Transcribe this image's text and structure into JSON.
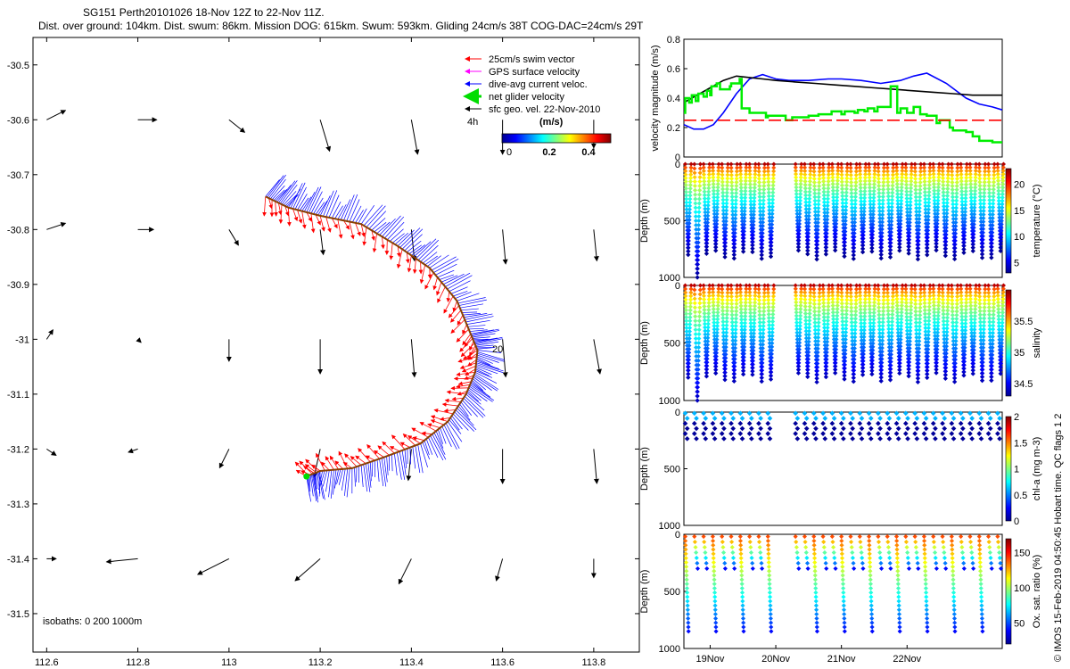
{
  "header": {
    "line1": "SG151 Perth20101026 18-Nov 12Z to 22-Nov 11Z.",
    "line2": "Dist. over ground: 104km. Dist. swum: 86km. Mission DOG: 615km. Swum: 593km. Gliding 24cm/s 38T COG-DAC=24cm/s 29T"
  },
  "footer_note": "© IMOS 15-Feb-2019 04:50:45 Hobart time. QC flags 1  2",
  "chart_data": [
    {
      "id": "map",
      "type": "scatter",
      "title": "SG151 Perth20101026 18-Nov 12Z to 22-Nov 11Z.",
      "xlim": [
        112.57,
        113.9
      ],
      "ylim": [
        -31.57,
        -30.45
      ],
      "xticks": [
        112.6,
        112.8,
        113,
        113.2,
        113.4,
        113.6,
        113.8
      ],
      "xtick_labels": [
        "112.6",
        "112.8",
        "113",
        "113.2",
        "113.4",
        "113.6",
        "113.8"
      ],
      "yticks": [
        -30.5,
        -30.6,
        -30.7,
        -30.8,
        -30.9,
        -31,
        -31.1,
        -31.2,
        -31.3,
        -31.4,
        -31.5
      ],
      "ytick_labels": [
        "-30.5",
        "-30.6",
        "-30.7",
        "-30.8",
        "-30.9",
        "-31",
        "-31.1",
        "-31.2",
        "-31.3",
        "-31.4",
        "-31.5"
      ],
      "legend": {
        "position": "top-right",
        "entries": [
          {
            "label": "25cm/s swim vector",
            "color": "#ff0000"
          },
          {
            "label": "GPS surface velocity",
            "color": "#ff00ff"
          },
          {
            "label": "dive-avg current veloc.",
            "color": "#0000ff"
          },
          {
            "label": "net glider velocity",
            "color": "#00dd00"
          },
          {
            "label": "sfc geo. vel. 22-Nov-2010",
            "color": "#000000"
          }
        ]
      },
      "colorbar": {
        "title": "(m/s)",
        "tick_labels": [
          "0",
          "0.2",
          "0.4"
        ],
        "range": [
          0,
          0.5
        ],
        "side_label": "4h"
      },
      "isobaths_label": "isobaths: 0   200  1000m",
      "track_label": "20",
      "track": [
        {
          "lon": 113.08,
          "lat": -30.74
        },
        {
          "lon": 113.13,
          "lat": -30.76
        },
        {
          "lon": 113.2,
          "lat": -30.775
        },
        {
          "lon": 113.29,
          "lat": -30.79
        },
        {
          "lon": 113.37,
          "lat": -30.83
        },
        {
          "lon": 113.44,
          "lat": -30.87
        },
        {
          "lon": 113.5,
          "lat": -30.93
        },
        {
          "lon": 113.53,
          "lat": -30.99
        },
        {
          "lon": 113.545,
          "lat": -31.02
        },
        {
          "lon": 113.54,
          "lat": -31.06
        },
        {
          "lon": 113.52,
          "lat": -31.1
        },
        {
          "lon": 113.48,
          "lat": -31.15
        },
        {
          "lon": 113.42,
          "lat": -31.19
        },
        {
          "lon": 113.34,
          "lat": -31.215
        },
        {
          "lon": 113.27,
          "lat": -31.235
        },
        {
          "lon": 113.2,
          "lat": -31.24
        },
        {
          "lon": 113.17,
          "lat": -31.25
        }
      ],
      "geo_vectors": [
        {
          "lon": 112.6,
          "lat": -30.6,
          "u": 0.06,
          "v": 0.03
        },
        {
          "lon": 112.8,
          "lat": -30.6,
          "u": 0.06,
          "v": 0.0
        },
        {
          "lon": 113.0,
          "lat": -30.6,
          "u": 0.05,
          "v": -0.04
        },
        {
          "lon": 113.2,
          "lat": -30.6,
          "u": 0.03,
          "v": -0.1
        },
        {
          "lon": 113.4,
          "lat": -30.6,
          "u": 0.02,
          "v": -0.11
        },
        {
          "lon": 113.6,
          "lat": -30.6,
          "u": 0.0,
          "v": -0.11
        },
        {
          "lon": 113.8,
          "lat": -30.6,
          "u": 0.0,
          "v": -0.09
        },
        {
          "lon": 112.6,
          "lat": -30.8,
          "u": 0.06,
          "v": 0.02
        },
        {
          "lon": 112.8,
          "lat": -30.8,
          "u": 0.05,
          "v": 0.0
        },
        {
          "lon": 113.0,
          "lat": -30.8,
          "u": 0.03,
          "v": -0.05
        },
        {
          "lon": 113.2,
          "lat": -30.8,
          "u": 0.01,
          "v": -0.08
        },
        {
          "lon": 113.4,
          "lat": -30.8,
          "u": 0.01,
          "v": -0.1
        },
        {
          "lon": 113.6,
          "lat": -30.8,
          "u": 0.01,
          "v": -0.11
        },
        {
          "lon": 113.8,
          "lat": -30.8,
          "u": 0.01,
          "v": -0.1
        },
        {
          "lon": 112.6,
          "lat": -31.0,
          "u": 0.02,
          "v": 0.03
        },
        {
          "lon": 112.8,
          "lat": -31.0,
          "u": 0.01,
          "v": -0.01
        },
        {
          "lon": 113.0,
          "lat": -31.0,
          "u": 0.0,
          "v": -0.07
        },
        {
          "lon": 113.2,
          "lat": -31.0,
          "u": 0.0,
          "v": -0.11
        },
        {
          "lon": 113.4,
          "lat": -31.0,
          "u": 0.01,
          "v": -0.12
        },
        {
          "lon": 113.6,
          "lat": -31.0,
          "u": 0.01,
          "v": -0.12
        },
        {
          "lon": 113.8,
          "lat": -31.0,
          "u": 0.02,
          "v": -0.11
        },
        {
          "lon": 112.6,
          "lat": -31.2,
          "u": 0.03,
          "v": -0.02
        },
        {
          "lon": 112.8,
          "lat": -31.2,
          "u": -0.03,
          "v": -0.01
        },
        {
          "lon": 113.0,
          "lat": -31.2,
          "u": -0.03,
          "v": -0.06
        },
        {
          "lon": 113.2,
          "lat": -31.2,
          "u": -0.02,
          "v": -0.09
        },
        {
          "lon": 113.4,
          "lat": -31.2,
          "u": -0.01,
          "v": -0.1
        },
        {
          "lon": 113.6,
          "lat": -31.2,
          "u": 0.0,
          "v": -0.11
        },
        {
          "lon": 113.8,
          "lat": -31.2,
          "u": 0.01,
          "v": -0.11
        },
        {
          "lon": 112.6,
          "lat": -31.4,
          "u": 0.03,
          "v": 0.0
        },
        {
          "lon": 112.8,
          "lat": -31.4,
          "u": -0.1,
          "v": -0.01
        },
        {
          "lon": 113.0,
          "lat": -31.4,
          "u": -0.1,
          "v": -0.05
        },
        {
          "lon": 113.2,
          "lat": -31.4,
          "u": -0.08,
          "v": -0.07
        },
        {
          "lon": 113.4,
          "lat": -31.4,
          "u": -0.04,
          "v": -0.08
        },
        {
          "lon": 113.6,
          "lat": -31.4,
          "u": -0.02,
          "v": -0.07
        },
        {
          "lon": 113.8,
          "lat": -31.4,
          "u": 0.0,
          "v": -0.06
        }
      ]
    },
    {
      "id": "velocity",
      "type": "line",
      "ylabel": "velocity magnitude (m/s)",
      "xlim": [
        18.6,
        23.45
      ],
      "ylim": [
        0,
        0.8
      ],
      "yticks": [
        0,
        0.2,
        0.4,
        0.6,
        0.8
      ],
      "ytick_labels": [
        "0",
        "0.2",
        "0.4",
        "0.6",
        "0.8"
      ],
      "series": [
        {
          "name": "dive-avg current veloc.",
          "color": "#0000ff",
          "x": [
            18.6,
            18.75,
            18.9,
            19.05,
            19.2,
            19.4,
            19.6,
            19.8,
            20.0,
            20.2,
            20.5,
            20.8,
            21.0,
            21.3,
            21.6,
            21.9,
            22.1,
            22.3,
            22.6,
            22.9,
            23.1,
            23.3,
            23.45
          ],
          "y": [
            0.22,
            0.19,
            0.19,
            0.22,
            0.3,
            0.43,
            0.53,
            0.56,
            0.53,
            0.52,
            0.52,
            0.53,
            0.53,
            0.52,
            0.5,
            0.52,
            0.55,
            0.57,
            0.5,
            0.4,
            0.36,
            0.34,
            0.32
          ]
        },
        {
          "name": "net glider velocity",
          "color": "#000000",
          "x": [
            18.6,
            18.8,
            19.0,
            19.2,
            19.4,
            19.6,
            19.8,
            20.0,
            20.3,
            20.6,
            20.9,
            21.2,
            21.5,
            21.8,
            22.1,
            22.4,
            22.7,
            23.0,
            23.2,
            23.45
          ],
          "y": [
            0.37,
            0.42,
            0.47,
            0.52,
            0.55,
            0.54,
            0.53,
            0.52,
            0.51,
            0.5,
            0.49,
            0.48,
            0.47,
            0.46,
            0.45,
            0.44,
            0.43,
            0.42,
            0.42,
            0.42
          ]
        },
        {
          "name": "glider velocity (green)",
          "color": "#00ee00",
          "x": [
            18.6,
            18.62,
            18.68,
            18.72,
            18.78,
            18.82,
            18.9,
            18.95,
            19.0,
            19.02,
            19.1,
            19.15,
            19.3,
            19.32,
            19.45,
            19.48,
            19.6,
            19.68,
            19.72,
            19.85,
            19.88,
            20.0,
            20.15,
            20.25,
            20.45,
            20.5,
            20.6,
            20.65,
            20.8,
            20.85,
            21.0,
            21.05,
            21.2,
            21.25,
            21.35,
            21.4,
            21.5,
            21.55,
            21.7,
            21.75,
            21.85,
            21.9,
            22.0,
            22.1,
            22.2,
            22.3,
            22.45,
            22.5,
            22.65,
            22.7,
            22.9,
            23.0,
            23.1,
            23.3,
            23.45
          ],
          "y": [
            0.3,
            0.4,
            0.37,
            0.42,
            0.38,
            0.43,
            0.41,
            0.45,
            0.42,
            0.48,
            0.5,
            0.46,
            0.48,
            0.5,
            0.53,
            0.33,
            0.3,
            0.3,
            0.3,
            0.27,
            0.28,
            0.28,
            0.25,
            0.27,
            0.27,
            0.28,
            0.28,
            0.29,
            0.29,
            0.31,
            0.29,
            0.31,
            0.3,
            0.32,
            0.31,
            0.33,
            0.31,
            0.34,
            0.34,
            0.48,
            0.3,
            0.33,
            0.3,
            0.34,
            0.29,
            0.28,
            0.23,
            0.25,
            0.2,
            0.18,
            0.17,
            0.14,
            0.11,
            0.1,
            0.1
          ]
        },
        {
          "name": "reference (red dashed)",
          "color": "#ff0000",
          "dashed": true,
          "x": [
            18.6,
            23.45
          ],
          "y": [
            0.25,
            0.25
          ]
        }
      ]
    },
    {
      "id": "temperature",
      "type": "scatter",
      "ylabel": "Depth (m)",
      "colorbar_label": "temperature (°C)",
      "colorbar_ticks": [
        "5",
        "10",
        "15",
        "20"
      ],
      "colorbar_range": [
        3,
        23
      ],
      "ylim": [
        0,
        1000
      ],
      "yticks": [
        0,
        500,
        1000
      ],
      "dives": {
        "start": 18.62,
        "spacing": 0.14,
        "max_depth": 850,
        "gap_from": 19.95,
        "gap_to": 20.2
      },
      "profile_top": 22,
      "profile_bottom": 3.5
    },
    {
      "id": "salinity",
      "type": "scatter",
      "ylabel": "Depth (m)",
      "colorbar_label": "salinity",
      "colorbar_ticks": [
        "34.5",
        "35",
        "35.5"
      ],
      "colorbar_range": [
        34.3,
        36.0
      ],
      "ylim": [
        0,
        1000
      ],
      "yticks": [
        0,
        500,
        1000
      ],
      "profile_top": 35.9,
      "profile_bottom": 34.4
    },
    {
      "id": "chla",
      "type": "scatter",
      "ylabel": "Depth (m)",
      "colorbar_label": "chl-a (mg m-3)",
      "colorbar_ticks": [
        "0",
        "0.5",
        "1",
        "1.5",
        "2"
      ],
      "colorbar_range": [
        0,
        2
      ],
      "ylim": [
        0,
        1000
      ],
      "yticks": [
        0,
        500,
        1000
      ],
      "max_depth": 250
    },
    {
      "id": "oxygen",
      "type": "scatter",
      "ylabel": "Depth (m)",
      "colorbar_label": "Ox. sat. ratio (%)",
      "colorbar_ticks": [
        "50",
        "100",
        "150"
      ],
      "colorbar_range": [
        20,
        170
      ],
      "ylim": [
        0,
        1000
      ],
      "yticks": [
        0,
        500,
        1000
      ],
      "x_tick_labels": [
        "19Nov",
        "20Nov",
        "21Nov",
        "22Nov"
      ],
      "x_tick_values": [
        19,
        20,
        21,
        22
      ]
    }
  ]
}
